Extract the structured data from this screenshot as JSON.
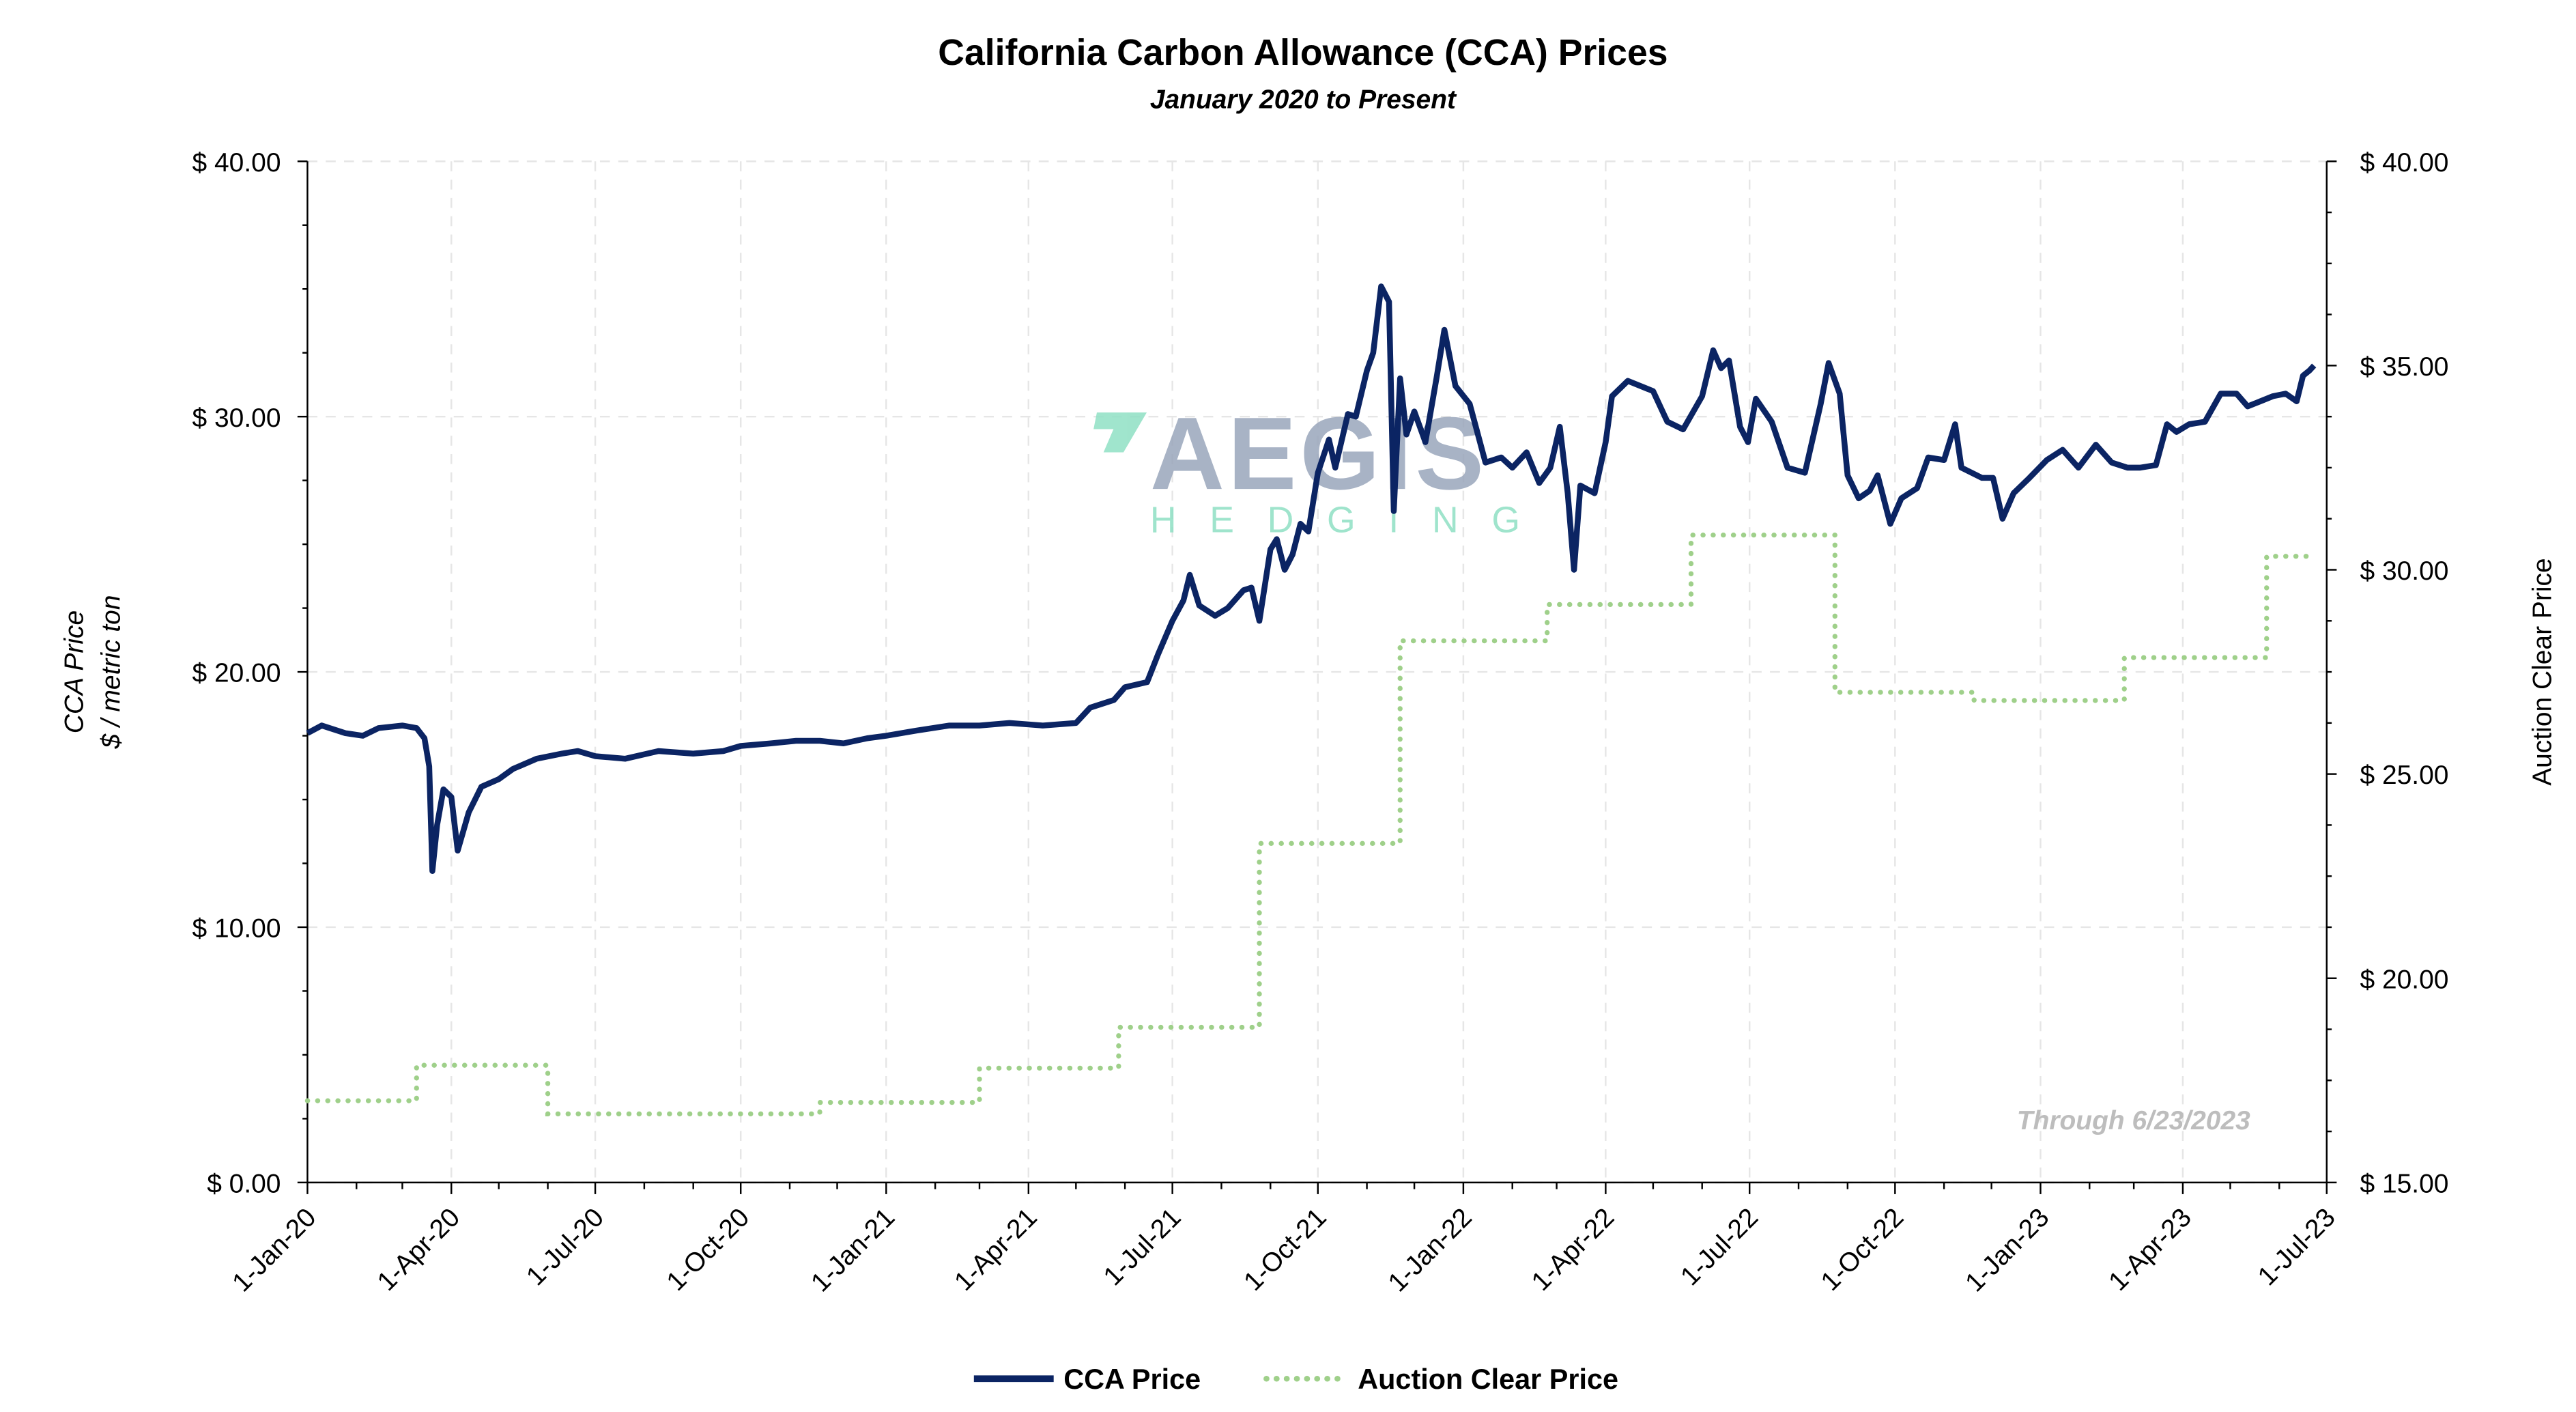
{
  "chart_data": {
    "type": "line",
    "title": "California Carbon Allowance (CCA) Prices",
    "subtitle": "January 2020 to Present",
    "ylabel_left": [
      "CCA Price",
      "$ / metric ton"
    ],
    "ylabel_right": "Auction Clear Price",
    "ylim_left": [
      0,
      40
    ],
    "ylim_right": [
      15,
      40
    ],
    "yticks_left": [
      "$ 0.00",
      "$ 10.00",
      "$ 20.00",
      "$ 30.00",
      "$ 40.00"
    ],
    "yticks_right": [
      "$ 15.00",
      "$ 20.00",
      "$ 25.00",
      "$ 30.00",
      "$ 35.00",
      "$ 40.00"
    ],
    "xlim": [
      "2020-01-01",
      "2023-07-01"
    ],
    "xticks": [
      "1-Jan-20",
      "1-Apr-20",
      "1-Jul-20",
      "1-Oct-20",
      "1-Jan-21",
      "1-Apr-21",
      "1-Jul-21",
      "1-Oct-21",
      "1-Jan-22",
      "1-Apr-22",
      "1-Jul-22",
      "1-Oct-22",
      "1-Jan-23",
      "1-Apr-23",
      "1-Jul-23"
    ],
    "xtick_dates": [
      "2020-01-01",
      "2020-04-01",
      "2020-07-01",
      "2020-10-01",
      "2021-01-01",
      "2021-04-01",
      "2021-07-01",
      "2021-10-01",
      "2022-01-01",
      "2022-04-01",
      "2022-07-01",
      "2022-10-01",
      "2023-01-01",
      "2023-04-01",
      "2023-07-01"
    ],
    "grid": true,
    "legend_position": "bottom",
    "annotation": "Through 6/23/2023",
    "watermark": {
      "line1": "AEGIS",
      "line2": "HEDGING"
    },
    "colors": {
      "cca": "#0b2463",
      "auction": "#9fd08a",
      "watermark_text": "#9aa6bb",
      "watermark_accent": "#8fe0c4",
      "grid": "#e6e6e6"
    },
    "series": [
      {
        "name": "CCA Price",
        "axis": "left",
        "style": "solid",
        "points": [
          [
            "2020-01-01",
            17.6
          ],
          [
            "2020-01-10",
            17.9
          ],
          [
            "2020-01-25",
            17.6
          ],
          [
            "2020-02-05",
            17.5
          ],
          [
            "2020-02-15",
            17.8
          ],
          [
            "2020-03-01",
            17.9
          ],
          [
            "2020-03-10",
            17.8
          ],
          [
            "2020-03-15",
            17.4
          ],
          [
            "2020-03-18",
            16.3
          ],
          [
            "2020-03-20",
            12.2
          ],
          [
            "2020-03-23",
            14.0
          ],
          [
            "2020-03-27",
            15.4
          ],
          [
            "2020-04-01",
            15.1
          ],
          [
            "2020-04-05",
            13.0
          ],
          [
            "2020-04-12",
            14.5
          ],
          [
            "2020-04-20",
            15.5
          ],
          [
            "2020-05-01",
            15.8
          ],
          [
            "2020-05-10",
            16.2
          ],
          [
            "2020-05-25",
            16.6
          ],
          [
            "2020-06-10",
            16.8
          ],
          [
            "2020-06-20",
            16.9
          ],
          [
            "2020-07-01",
            16.7
          ],
          [
            "2020-07-20",
            16.6
          ],
          [
            "2020-08-10",
            16.9
          ],
          [
            "2020-09-01",
            16.8
          ],
          [
            "2020-09-20",
            16.9
          ],
          [
            "2020-10-01",
            17.1
          ],
          [
            "2020-10-20",
            17.2
          ],
          [
            "2020-11-05",
            17.3
          ],
          [
            "2020-11-20",
            17.3
          ],
          [
            "2020-12-05",
            17.2
          ],
          [
            "2020-12-20",
            17.4
          ],
          [
            "2021-01-01",
            17.5
          ],
          [
            "2021-01-20",
            17.7
          ],
          [
            "2021-02-10",
            17.9
          ],
          [
            "2021-03-01",
            17.9
          ],
          [
            "2021-03-20",
            18.0
          ],
          [
            "2021-04-10",
            17.9
          ],
          [
            "2021-05-01",
            18.0
          ],
          [
            "2021-05-10",
            18.6
          ],
          [
            "2021-05-25",
            18.9
          ],
          [
            "2021-06-01",
            19.4
          ],
          [
            "2021-06-15",
            19.6
          ],
          [
            "2021-06-22",
            20.7
          ],
          [
            "2021-07-01",
            22.0
          ],
          [
            "2021-07-08",
            22.8
          ],
          [
            "2021-07-12",
            23.8
          ],
          [
            "2021-07-18",
            22.6
          ],
          [
            "2021-07-28",
            22.2
          ],
          [
            "2021-08-05",
            22.5
          ],
          [
            "2021-08-15",
            23.2
          ],
          [
            "2021-08-20",
            23.3
          ],
          [
            "2021-08-25",
            22.0
          ],
          [
            "2021-09-01",
            24.8
          ],
          [
            "2021-09-05",
            25.2
          ],
          [
            "2021-09-10",
            24.0
          ],
          [
            "2021-09-15",
            24.6
          ],
          [
            "2021-09-20",
            25.8
          ],
          [
            "2021-09-25",
            25.5
          ],
          [
            "2021-10-01",
            27.8
          ],
          [
            "2021-10-08",
            29.1
          ],
          [
            "2021-10-12",
            28.0
          ],
          [
            "2021-10-20",
            30.1
          ],
          [
            "2021-10-25",
            30.0
          ],
          [
            "2021-11-01",
            31.8
          ],
          [
            "2021-11-05",
            32.5
          ],
          [
            "2021-11-10",
            35.1
          ],
          [
            "2021-11-15",
            34.5
          ],
          [
            "2021-11-18",
            26.3
          ],
          [
            "2021-11-22",
            31.5
          ],
          [
            "2021-11-26",
            29.3
          ],
          [
            "2021-12-01",
            30.2
          ],
          [
            "2021-12-08",
            29.0
          ],
          [
            "2021-12-15",
            31.5
          ],
          [
            "2021-12-20",
            33.4
          ],
          [
            "2021-12-27",
            31.2
          ],
          [
            "2022-01-05",
            30.5
          ],
          [
            "2022-01-15",
            28.2
          ],
          [
            "2022-01-25",
            28.4
          ],
          [
            "2022-02-01",
            28.0
          ],
          [
            "2022-02-10",
            28.6
          ],
          [
            "2022-02-18",
            27.4
          ],
          [
            "2022-02-25",
            28.0
          ],
          [
            "2022-03-03",
            29.6
          ],
          [
            "2022-03-08",
            27.0
          ],
          [
            "2022-03-12",
            24.0
          ],
          [
            "2022-03-16",
            27.3
          ],
          [
            "2022-03-25",
            27.0
          ],
          [
            "2022-04-01",
            29.0
          ],
          [
            "2022-04-05",
            30.8
          ],
          [
            "2022-04-15",
            31.4
          ],
          [
            "2022-05-01",
            31.0
          ],
          [
            "2022-05-10",
            29.8
          ],
          [
            "2022-05-20",
            29.5
          ],
          [
            "2022-06-01",
            30.8
          ],
          [
            "2022-06-08",
            32.6
          ],
          [
            "2022-06-13",
            31.9
          ],
          [
            "2022-06-18",
            32.2
          ],
          [
            "2022-06-25",
            29.6
          ],
          [
            "2022-06-30",
            29.0
          ],
          [
            "2022-07-05",
            30.7
          ],
          [
            "2022-07-15",
            29.8
          ],
          [
            "2022-07-25",
            28.0
          ],
          [
            "2022-08-05",
            27.8
          ],
          [
            "2022-08-15",
            30.5
          ],
          [
            "2022-08-20",
            32.1
          ],
          [
            "2022-08-27",
            30.9
          ],
          [
            "2022-09-01",
            27.7
          ],
          [
            "2022-09-08",
            26.8
          ],
          [
            "2022-09-15",
            27.1
          ],
          [
            "2022-09-20",
            27.7
          ],
          [
            "2022-09-28",
            25.8
          ],
          [
            "2022-10-05",
            26.8
          ],
          [
            "2022-10-15",
            27.2
          ],
          [
            "2022-10-22",
            28.4
          ],
          [
            "2022-11-01",
            28.3
          ],
          [
            "2022-11-08",
            29.7
          ],
          [
            "2022-11-12",
            28.0
          ],
          [
            "2022-11-25",
            27.6
          ],
          [
            "2022-12-02",
            27.6
          ],
          [
            "2022-12-08",
            26.0
          ],
          [
            "2022-12-15",
            27.0
          ],
          [
            "2022-12-25",
            27.6
          ],
          [
            "2023-01-05",
            28.3
          ],
          [
            "2023-01-15",
            28.7
          ],
          [
            "2023-01-25",
            28.0
          ],
          [
            "2023-02-05",
            28.9
          ],
          [
            "2023-02-15",
            28.2
          ],
          [
            "2023-02-25",
            28.0
          ],
          [
            "2023-03-05",
            28.0
          ],
          [
            "2023-03-15",
            28.1
          ],
          [
            "2023-03-22",
            29.7
          ],
          [
            "2023-03-28",
            29.4
          ],
          [
            "2023-04-05",
            29.7
          ],
          [
            "2023-04-15",
            29.8
          ],
          [
            "2023-04-25",
            30.9
          ],
          [
            "2023-05-05",
            30.9
          ],
          [
            "2023-05-12",
            30.4
          ],
          [
            "2023-05-20",
            30.6
          ],
          [
            "2023-05-28",
            30.8
          ],
          [
            "2023-06-05",
            30.9
          ],
          [
            "2023-06-12",
            30.6
          ],
          [
            "2023-06-16",
            31.6
          ],
          [
            "2023-06-20",
            31.8
          ],
          [
            "2023-06-23",
            32.0
          ]
        ]
      },
      {
        "name": "Auction Clear Price",
        "axis": "right",
        "style": "dotted-step",
        "points": [
          [
            "2020-01-01",
            17.0
          ],
          [
            "2020-03-10",
            17.87
          ],
          [
            "2020-06-01",
            16.68
          ],
          [
            "2020-11-20",
            16.96
          ],
          [
            "2021-03-01",
            17.8
          ],
          [
            "2021-05-28",
            18.8
          ],
          [
            "2021-08-25",
            23.3
          ],
          [
            "2021-11-22",
            28.26
          ],
          [
            "2022-02-23",
            29.15
          ],
          [
            "2022-05-25",
            30.85
          ],
          [
            "2022-08-24",
            27.0
          ],
          [
            "2022-11-20",
            26.8
          ],
          [
            "2023-02-23",
            27.85
          ],
          [
            "2023-05-24",
            30.33
          ],
          [
            "2023-06-23",
            30.33
          ]
        ]
      }
    ]
  }
}
